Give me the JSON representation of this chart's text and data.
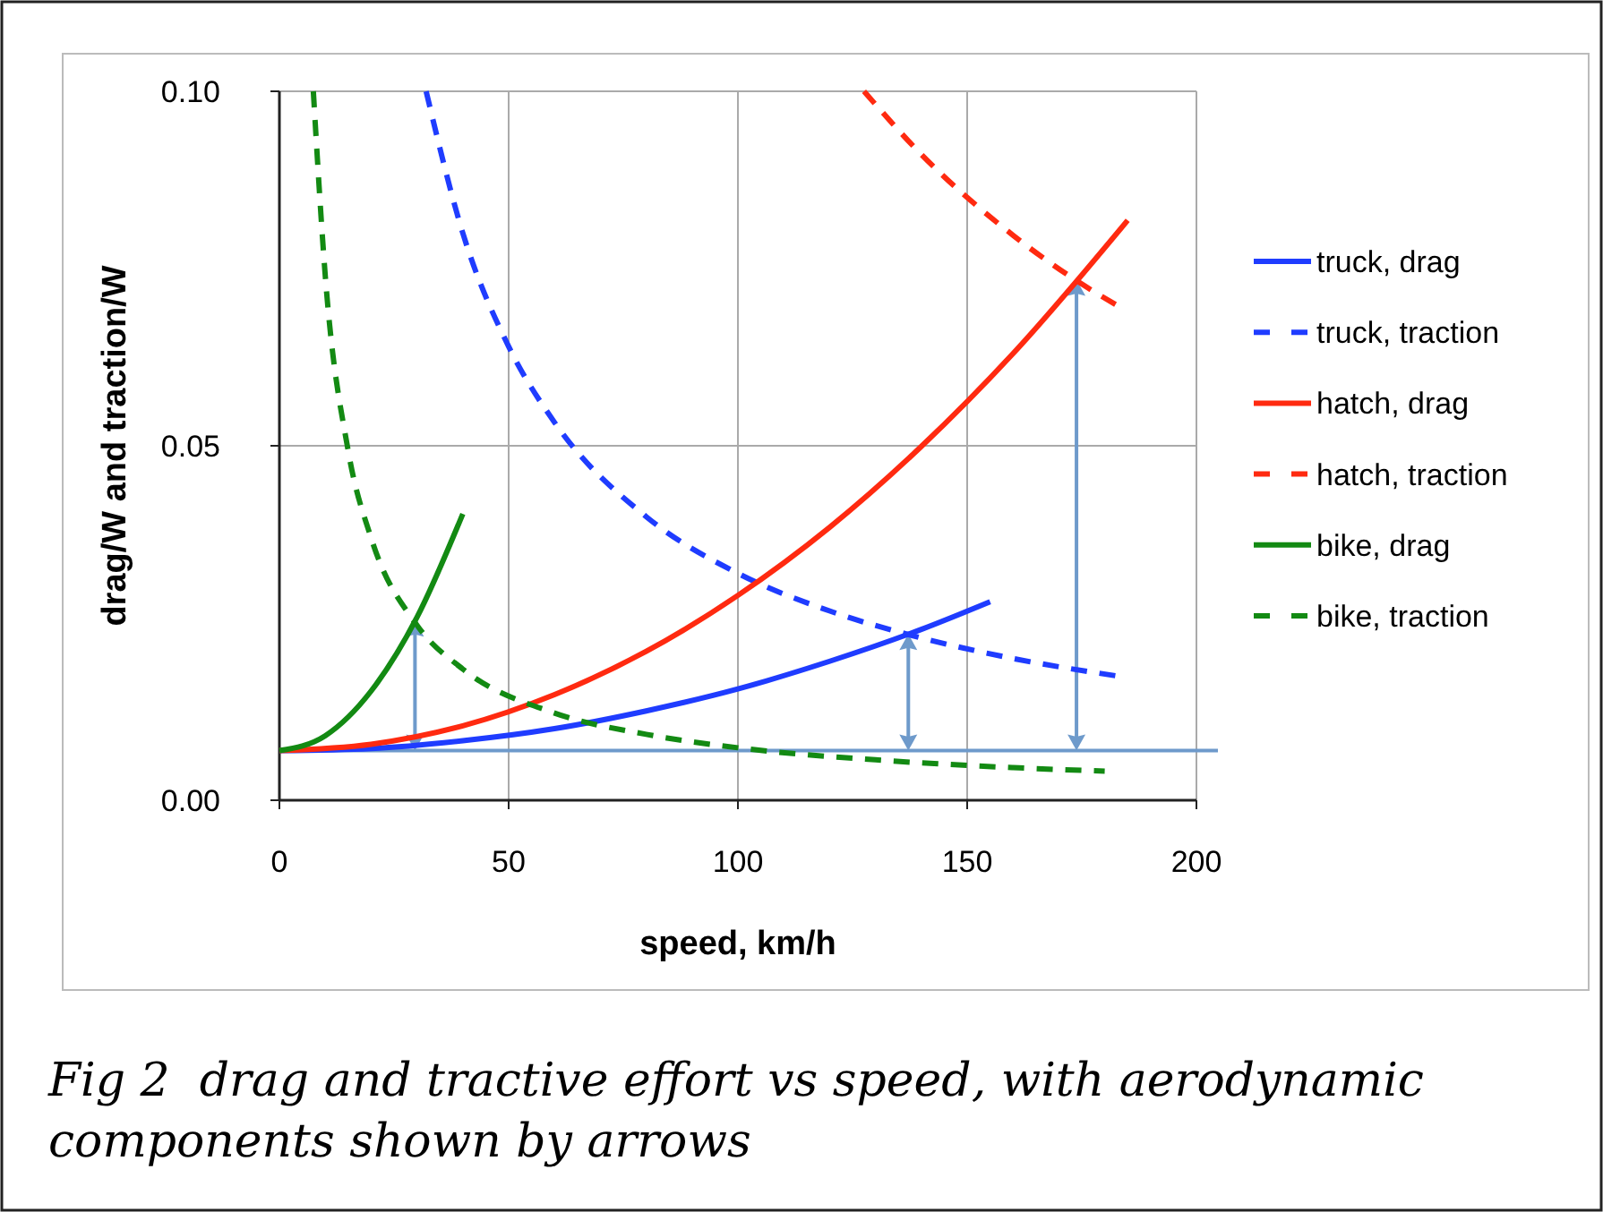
{
  "chart_data": {
    "type": "line",
    "xlabel": "speed, km/h",
    "ylabel": "drag/W and traction/W",
    "xlim": [
      0,
      200
    ],
    "xticks": [
      0,
      50,
      100,
      150,
      200
    ],
    "ylim": [
      0,
      0.1
    ],
    "yticks": [
      {
        "value": 0,
        "label": "0.00"
      },
      0.05,
      {
        "value": 0.1,
        "label": "0.10"
      }
    ],
    "grid": true,
    "legend": "right",
    "marker": "none",
    "series": [
      {
        "name": "truck, drag",
        "color": "#1f3cff",
        "line_style": "solid",
        "x": [
          0,
          20,
          40,
          60,
          80,
          100,
          120,
          140,
          155
        ],
        "values": [
          0.007,
          0.0073,
          0.0084,
          0.0101,
          0.0126,
          0.0157,
          0.0196,
          0.0241,
          0.028
        ]
      },
      {
        "name": "truck, traction",
        "color": "#1f3cff",
        "line_style": "dashed",
        "x": [
          32,
          40,
          50,
          60,
          80,
          100,
          120,
          140,
          160,
          183
        ],
        "values": [
          0.1,
          0.08,
          0.064,
          0.0533,
          0.04,
          0.032,
          0.0267,
          0.0229,
          0.02,
          0.0175
        ]
      },
      {
        "name": "hatch, drag",
        "color": "#ff2a10",
        "line_style": "solid",
        "x": [
          0,
          20,
          40,
          60,
          80,
          100,
          120,
          140,
          160,
          185
        ],
        "values": [
          0.007,
          0.0079,
          0.0105,
          0.0149,
          0.021,
          0.0289,
          0.0385,
          0.0499,
          0.063,
          0.0818
        ]
      },
      {
        "name": "hatch, traction",
        "color": "#ff2a10",
        "line_style": "dashed",
        "x": [
          127.5,
          140,
          160,
          176,
          183
        ],
        "values": [
          0.1,
          0.0911,
          0.0797,
          0.0724,
          0.0697
        ]
      },
      {
        "name": "bike, drag",
        "color": "#138a13",
        "line_style": "solid",
        "x": [
          0,
          10,
          20,
          30,
          40
        ],
        "values": [
          0.007,
          0.0091,
          0.0154,
          0.0258,
          0.0404
        ]
      },
      {
        "name": "bike, traction",
        "color": "#138a13",
        "line_style": "dashed",
        "x": [
          7.4,
          10,
          15,
          20,
          30,
          40,
          60,
          80,
          100,
          130,
          160,
          180
        ],
        "values": [
          0.1,
          0.074,
          0.0493,
          0.037,
          0.0247,
          0.0185,
          0.0123,
          0.0093,
          0.0074,
          0.0057,
          0.0046,
          0.0041
        ]
      }
    ],
    "ref_lines": [
      {
        "axis": "y",
        "value": 0.007,
        "color": "#6e9acb"
      }
    ],
    "annotations": [
      "Fig 2  drag and tractive effort vs speed, with aerodynamic components shown by arrows"
    ]
  }
}
